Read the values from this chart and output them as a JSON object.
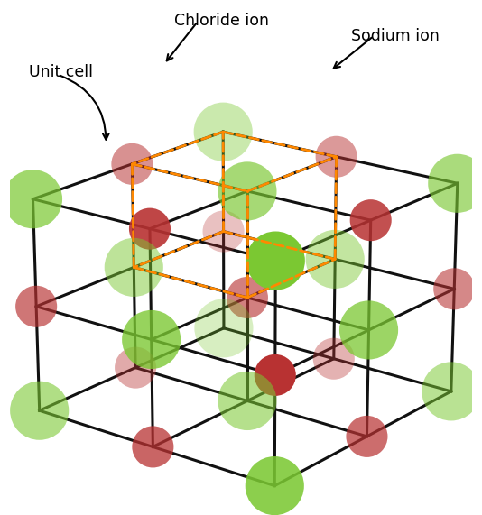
{
  "chloride_label": "Chloride ion",
  "sodium_label": "Sodium ion",
  "unit_cell_label": "Unit cell",
  "cl_color": "#7bc832",
  "na_color": "#b83232",
  "cl_size_pts": 2200,
  "na_size_pts": 1100,
  "lattice_color": "#111111",
  "unit_cell_color": "#ff8800",
  "background_color": "white",
  "lw_lattice": 2.2,
  "lw_unit_cell": 2.0,
  "fig_width": 5.34,
  "fig_height": 5.71,
  "elev": 20,
  "azim": -52,
  "N": 2,
  "unit_cell": [
    0,
    1,
    1,
    1,
    2,
    2
  ]
}
